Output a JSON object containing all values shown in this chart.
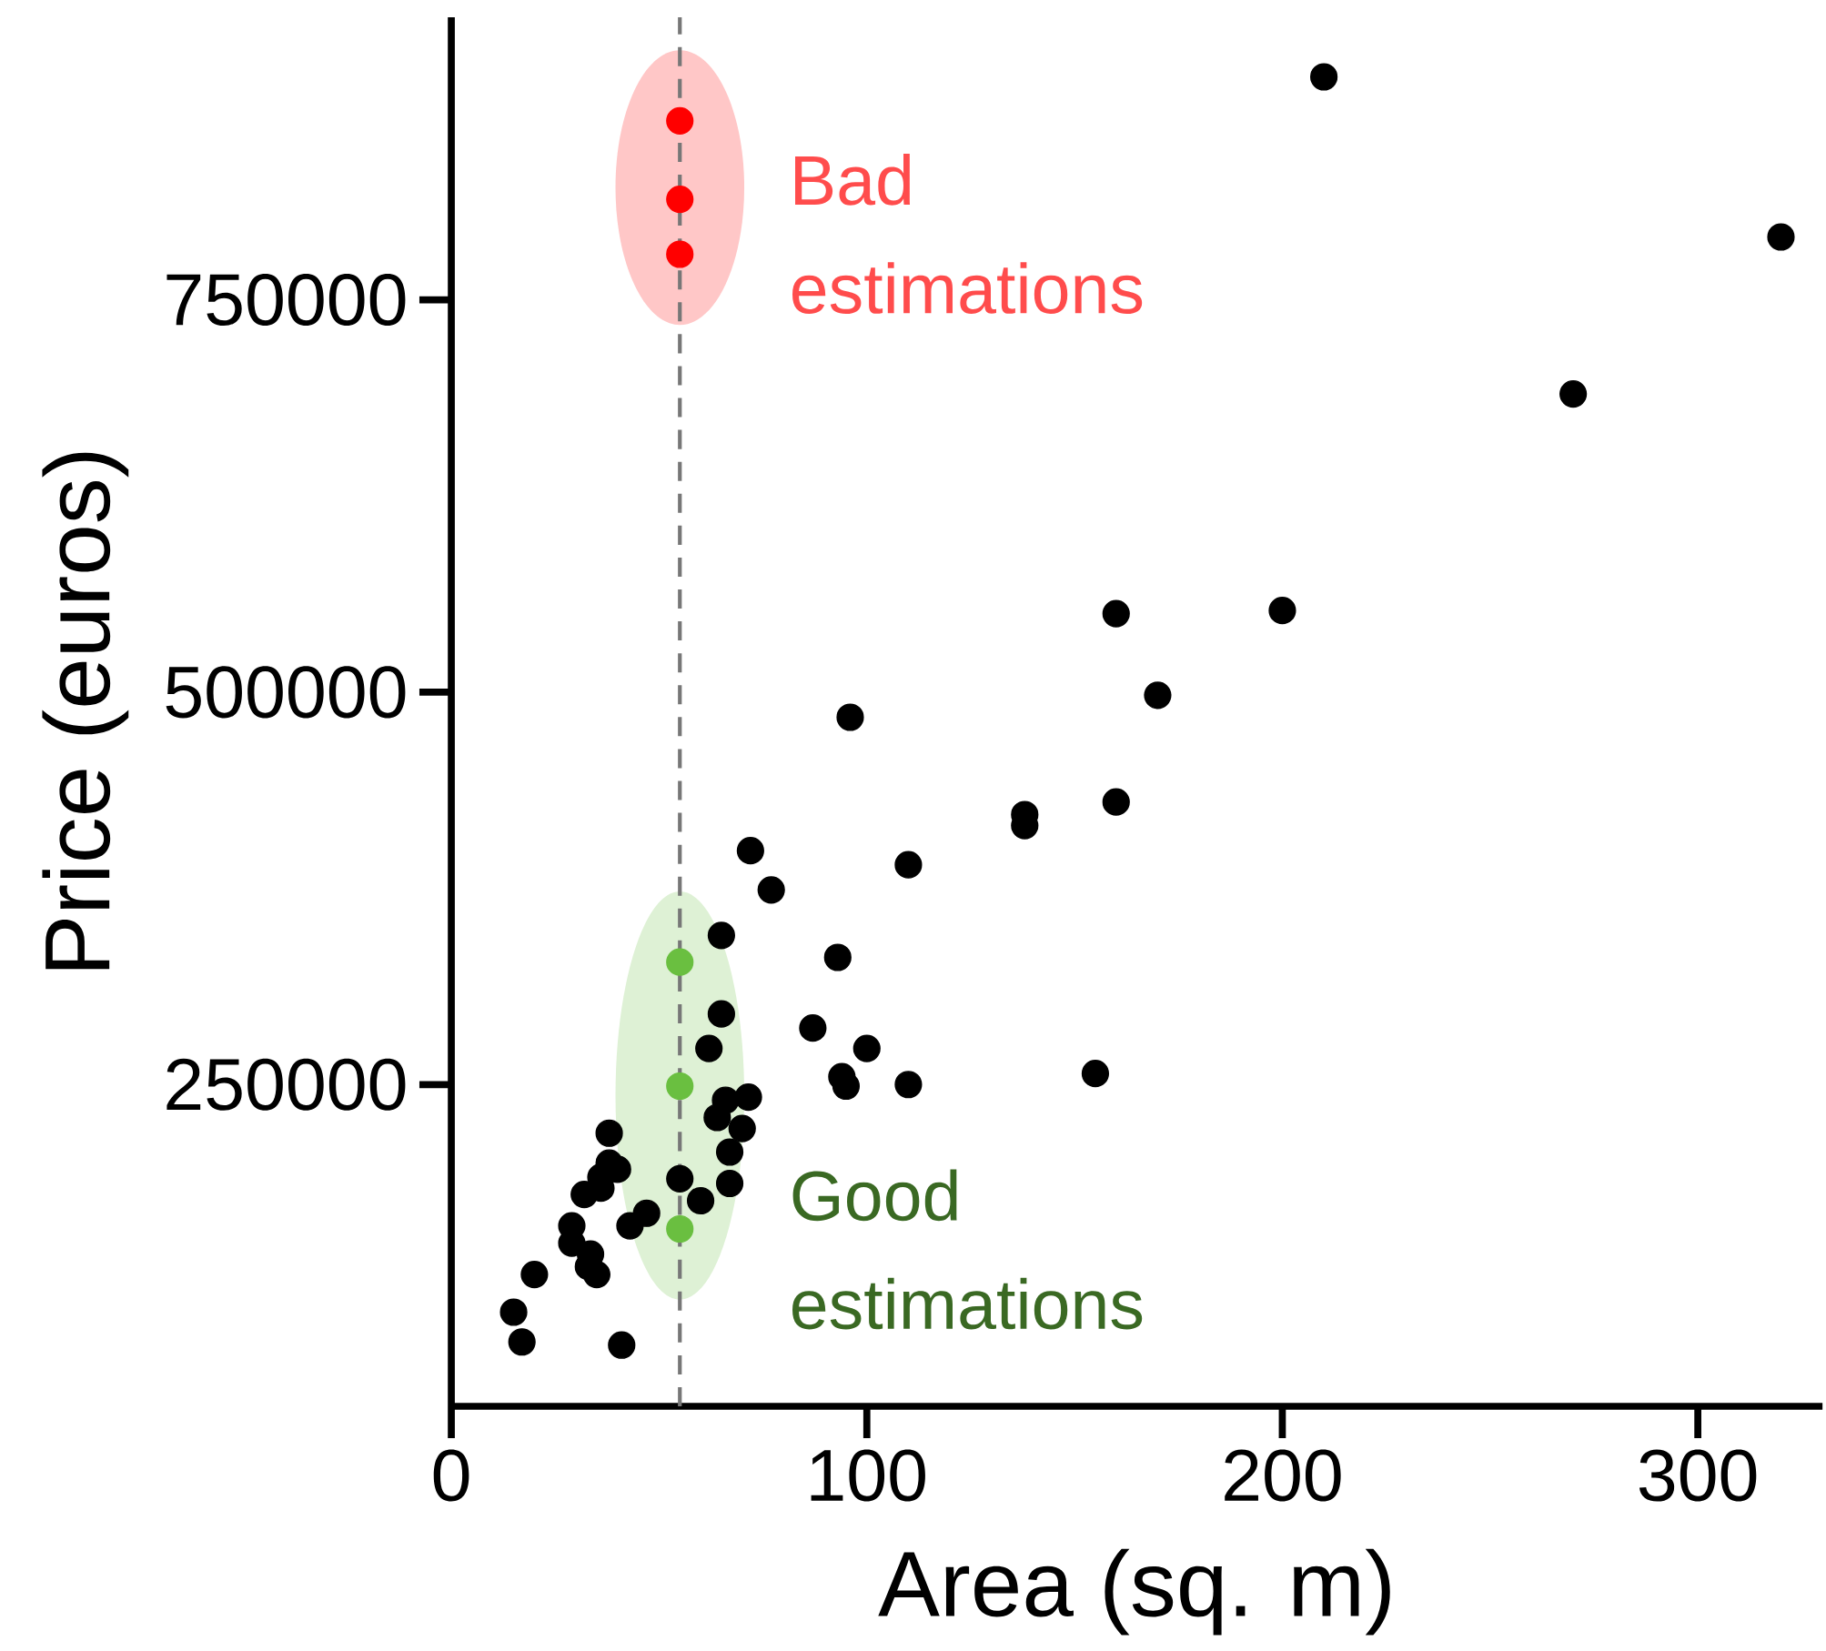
{
  "chart_data": {
    "type": "scatter",
    "xlabel": "Area (sq. m)",
    "ylabel": "Price (euros)",
    "xlim": [
      0,
      330
    ],
    "ylim": [
      45000,
      930000
    ],
    "xticks": [
      0,
      100,
      200,
      300
    ],
    "yticks": [
      250000,
      500000,
      750000
    ],
    "marker": "circle",
    "grid": false,
    "series": [
      {
        "color": "#000000",
        "x": [
          210,
          320,
          270,
          160,
          200,
          170,
          96,
          160,
          138,
          138,
          72,
          110,
          77,
          65,
          93,
          65,
          87,
          62,
          100,
          155,
          94,
          95,
          110,
          71.5,
          66,
          64,
          70,
          38,
          67,
          40,
          38,
          55,
          36,
          36,
          32,
          67,
          60,
          47,
          43,
          29,
          29,
          33.5,
          33,
          35,
          20,
          15,
          17,
          41
        ],
        "values": [
          892000,
          790000,
          690000,
          550000,
          552000,
          498000,
          484000,
          430000,
          422000,
          415000,
          399000,
          390000,
          374000,
          345000,
          331000,
          295000,
          286000,
          273000,
          273000,
          257000,
          255000,
          249000,
          250000,
          242000,
          240000,
          229000,
          222000,
          219000,
          207000,
          196000,
          200000,
          190000,
          191000,
          184000,
          180000,
          187000,
          176000,
          168000,
          160000,
          160000,
          149000,
          142000,
          134000,
          129000,
          129000,
          105000,
          86000,
          84000
        ]
      },
      {
        "color": "#ff0000",
        "x": [
          55,
          55,
          55
        ],
        "values": [
          864000,
          814000,
          779000
        ]
      },
      {
        "color": "#6abf40",
        "x": [
          55,
          55,
          55
        ],
        "values": [
          328000,
          249000,
          158000
        ]
      }
    ],
    "ref_lines": [
      {
        "axis": "x",
        "value": 55,
        "color": "#777777",
        "line_style": "dashed"
      }
    ],
    "annotations": [
      {
        "text": "Bad estimations",
        "x": 55,
        "y": 792000
      },
      {
        "text": "Good estimations",
        "x": 55,
        "y": 145000
      }
    ]
  }
}
